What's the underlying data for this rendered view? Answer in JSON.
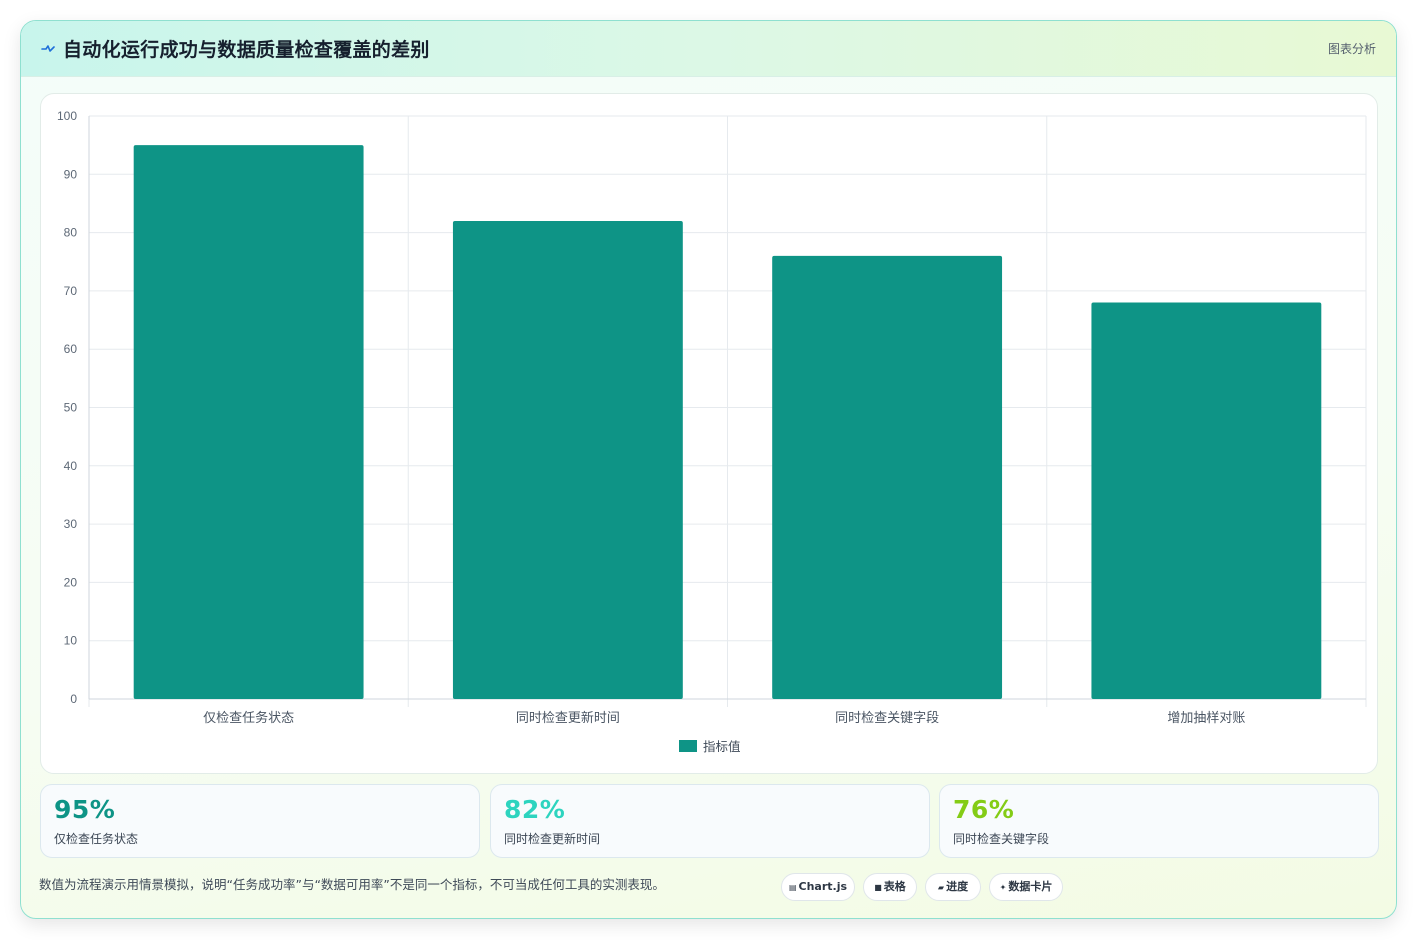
{
  "header": {
    "title": "自动化运行成功与数据质量检查覆盖的差别",
    "tag": "图表分析"
  },
  "chart_data": {
    "type": "bar",
    "categories": [
      "仅检查任务状态",
      "同时检查更新时间",
      "同时检查关键字段",
      "增加抽样对账"
    ],
    "series": [
      {
        "name": "指标值",
        "values": [
          95,
          82,
          76,
          68
        ]
      }
    ],
    "ylim": [
      0,
      100
    ],
    "yticks": [
      0,
      10,
      20,
      30,
      40,
      50,
      60,
      70,
      80,
      90,
      100
    ],
    "legend": "bottom-center",
    "grid": true,
    "bar_color": "#0e9486"
  },
  "kpis": [
    {
      "value": "95%",
      "label": "仅检查任务状态",
      "color": "#0e9486"
    },
    {
      "value": "82%",
      "label": "同时检查更新时间",
      "color": "#2dd4bf"
    },
    {
      "value": "76%",
      "label": "同时检查关键字段",
      "color": "#84cc16"
    }
  ],
  "footer": {
    "note": "数值为流程演示用情景模拟，说明“任务成功率”与“数据可用率”不是同一个指标，不可当成任何工具的实测表现。",
    "tools": [
      {
        "icon": "▤",
        "label": "Chart.js"
      },
      {
        "icon": "■",
        "label": "表格"
      },
      {
        "icon": "▰",
        "label": "进度"
      },
      {
        "icon": "✦",
        "label": "数据卡片"
      }
    ]
  }
}
